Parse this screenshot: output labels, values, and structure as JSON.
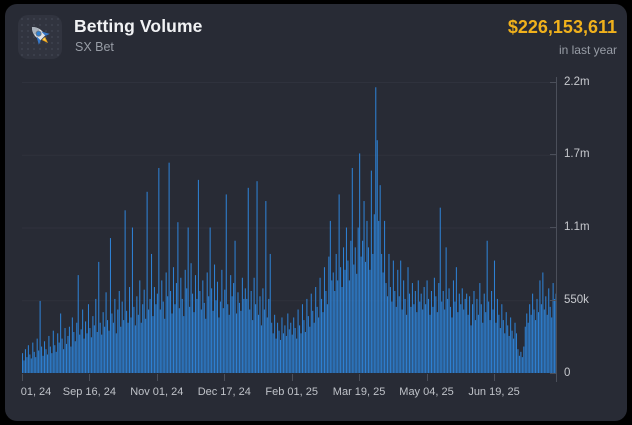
{
  "card": {
    "header": {
      "icon": "rocket-icon",
      "title": "Betting Volume",
      "subtitle": "SX Bet",
      "value": "$226,153,611",
      "period": "in last year"
    }
  },
  "colors": {
    "value_gold": "#f0b11c",
    "bar_blue": "#2e80d2",
    "gridline": "#2f323d",
    "axis": "#4b4f5a"
  },
  "chart_data": {
    "type": "bar",
    "title": "Betting Volume",
    "subtitle": "SX Bet",
    "total_label": "$226,153,611",
    "period": "in last year",
    "unit": "USD, daily volume, values in thousands",
    "ylim_k": [
      0,
      2200
    ],
    "grid_on": true,
    "grid_y_k": [
      550,
      1100,
      1650,
      2200
    ],
    "y_ticks": [
      {
        "label": "2.2m",
        "value_k": 2200
      },
      {
        "label": "1.7m",
        "value_k": 1650
      },
      {
        "label": "1.1m",
        "value_k": 1100
      },
      {
        "label": "550k",
        "value_k": 550
      },
      {
        "label": "0",
        "value_k": 0
      }
    ],
    "x_ticks": [
      {
        "label": "01, 24",
        "day": 0,
        "dx": 14
      },
      {
        "label": "Sep 16, 24",
        "day": 46,
        "dx": 0
      },
      {
        "label": "Nov 01, 24",
        "day": 92,
        "dx": 0
      },
      {
        "label": "Dec 17, 24",
        "day": 138,
        "dx": 0
      },
      {
        "label": "Feb 01, 25",
        "day": 184,
        "dx": 0
      },
      {
        "label": "Mar 19, 25",
        "day": 230,
        "dx": 0
      },
      {
        "label": "May 04, 25",
        "day": 276,
        "dx": 0
      },
      {
        "label": "Jun 19, 25",
        "day": 322,
        "dx": 0
      }
    ],
    "days_total": 365,
    "values_k": [
      150,
      95,
      180,
      120,
      210,
      140,
      110,
      230,
      160,
      120,
      260,
      170,
      545,
      200,
      130,
      240,
      180,
      140,
      280,
      200,
      150,
      320,
      210,
      160,
      300,
      230,
      450,
      260,
      180,
      340,
      220,
      280,
      350,
      200,
      420,
      310,
      240,
      380,
      740,
      290,
      330,
      480,
      260,
      390,
      300,
      520,
      340,
      270,
      430,
      360,
      560,
      310,
      840,
      380,
      290,
      460,
      350,
      610,
      400,
      320,
      1020,
      450,
      380,
      560,
      300,
      480,
      620,
      350,
      540,
      400,
      1230,
      470,
      380,
      650,
      420,
      1100,
      500,
      360,
      580,
      440,
      700,
      380,
      520,
      630,
      410,
      1370,
      480,
      560,
      900,
      430,
      650,
      520,
      600,
      1550,
      480,
      700,
      540,
      410,
      760,
      580,
      1590,
      620,
      450,
      800,
      520,
      680,
      1140,
      490,
      720,
      560,
      430,
      780,
      640,
      1100,
      500,
      830,
      600,
      460,
      740,
      560,
      1460,
      620,
      480,
      700,
      530,
      410,
      760,
      580,
      1100,
      640,
      470,
      820,
      550,
      690,
      420,
      540,
      780,
      490,
      630,
      1350,
      520,
      440,
      740,
      580,
      680,
      1000,
      450,
      610,
      530,
      470,
      720,
      560,
      640,
      560,
      1400,
      480,
      620,
      400,
      720,
      520,
      1450,
      440,
      580,
      360,
      640,
      480,
      1300,
      420,
      560,
      900,
      380,
      300,
      440,
      260,
      380,
      320,
      250,
      420,
      300,
      360,
      280,
      450,
      330,
      380,
      290,
      420,
      340,
      260,
      480,
      360,
      300,
      520,
      400,
      310,
      560,
      430,
      350,
      600,
      470,
      380,
      650,
      500,
      420,
      720,
      560,
      460,
      800,
      620,
      520,
      880,
      1150,
      700,
      760,
      620,
      900,
      700,
      1350,
      800,
      650,
      950,
      780,
      1100,
      850,
      700,
      1000,
      1550,
      820,
      950,
      750,
      1100,
      1660,
      880,
      1000,
      1300,
      840,
      1150,
      950,
      780,
      1530,
      900,
      1200,
      2160,
      1760,
      1150,
      1420,
      900,
      760,
      1150,
      680,
      580,
      900,
      650,
      540,
      850,
      620,
      500,
      780,
      580,
      850,
      480,
      700,
      560,
      440,
      800,
      600,
      500,
      680,
      520,
      620,
      460,
      700,
      540,
      600,
      480,
      650,
      520,
      700,
      560,
      440,
      620,
      500,
      720,
      580,
      460,
      680,
      1250,
      540,
      620,
      480,
      950,
      560,
      640,
      500,
      420,
      700,
      540,
      800,
      460,
      600,
      520,
      640,
      480,
      560,
      600,
      440,
      580,
      360,
      520,
      620,
      400,
      560,
      440,
      680,
      520,
      380,
      600,
      460,
      1000,
      540,
      400,
      620,
      480,
      850,
      380,
      560,
      440,
      340,
      520,
      400,
      300,
      460,
      360,
      280,
      420,
      320,
      260,
      380,
      300,
      180,
      130,
      160,
      120,
      200,
      350,
      450,
      380,
      520,
      440,
      600,
      480,
      400,
      560,
      460,
      700,
      520,
      760,
      480,
      580,
      440,
      640,
      500,
      420,
      680,
      560,
      600
    ]
  }
}
